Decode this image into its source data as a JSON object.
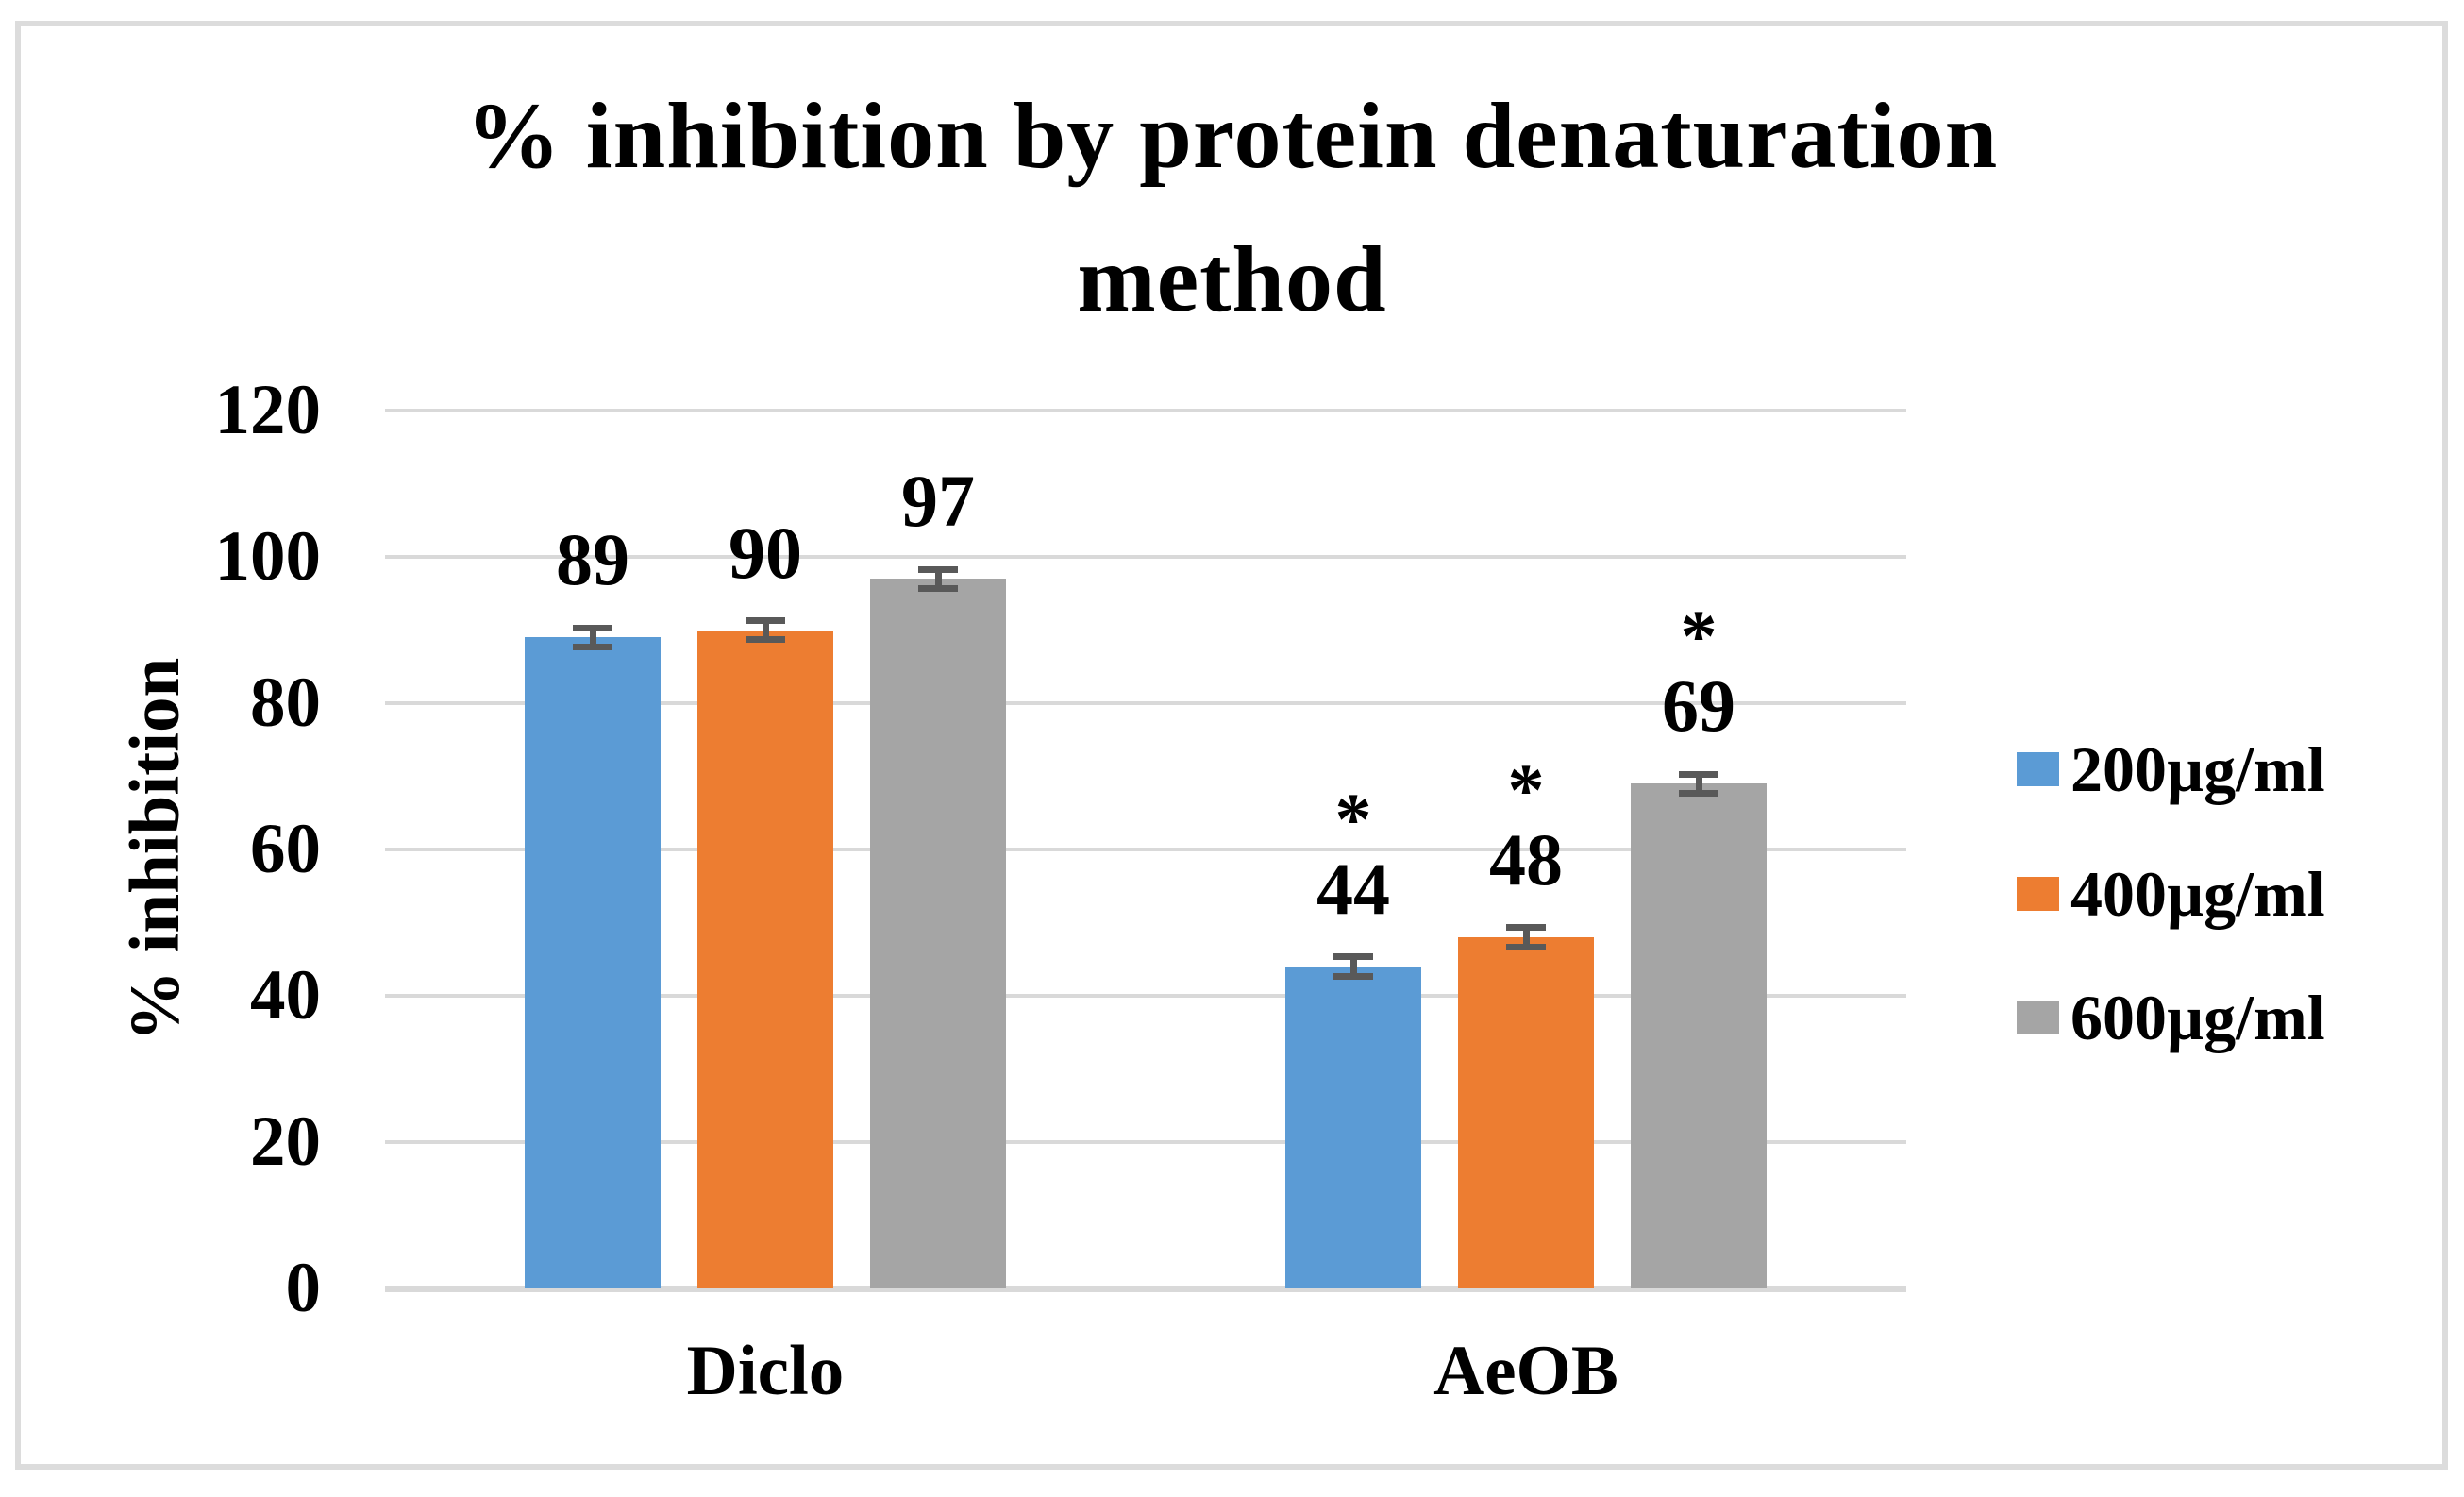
{
  "chart_data": {
    "type": "bar",
    "title": "% inhibition by protein denaturation method",
    "title_lines": [
      "% inhibition by protein denaturation",
      "method"
    ],
    "ylabel": "% inhibition",
    "xlabel": "",
    "categories": [
      "Diclo",
      "AeOB"
    ],
    "series": [
      {
        "name": "200µg/ml",
        "color": "#5B9BD5",
        "values": [
          89,
          44
        ]
      },
      {
        "name": "400µg/ml",
        "color": "#ED7D31",
        "values": [
          90,
          48
        ]
      },
      {
        "name": "600µg/ml",
        "color": "#A5A5A5",
        "values": [
          97,
          69
        ]
      }
    ],
    "significance": {
      "marker": "*",
      "flags": [
        [
          false,
          true
        ],
        [
          false,
          true
        ],
        [
          false,
          true
        ]
      ]
    },
    "error_bar_units": 1.3,
    "y_axis": {
      "min": 0,
      "max": 120,
      "step": 20,
      "ticks": [
        0,
        20,
        40,
        60,
        80,
        100,
        120
      ]
    },
    "grid": true,
    "value_labels": true,
    "legend_position": "right",
    "colors": {
      "grid": "#d9d9d9",
      "axis_line": "#d9d9d9",
      "error": "#595959",
      "text": "#000000",
      "frame_border": "#dcdcdc",
      "background": "#ffffff"
    }
  }
}
